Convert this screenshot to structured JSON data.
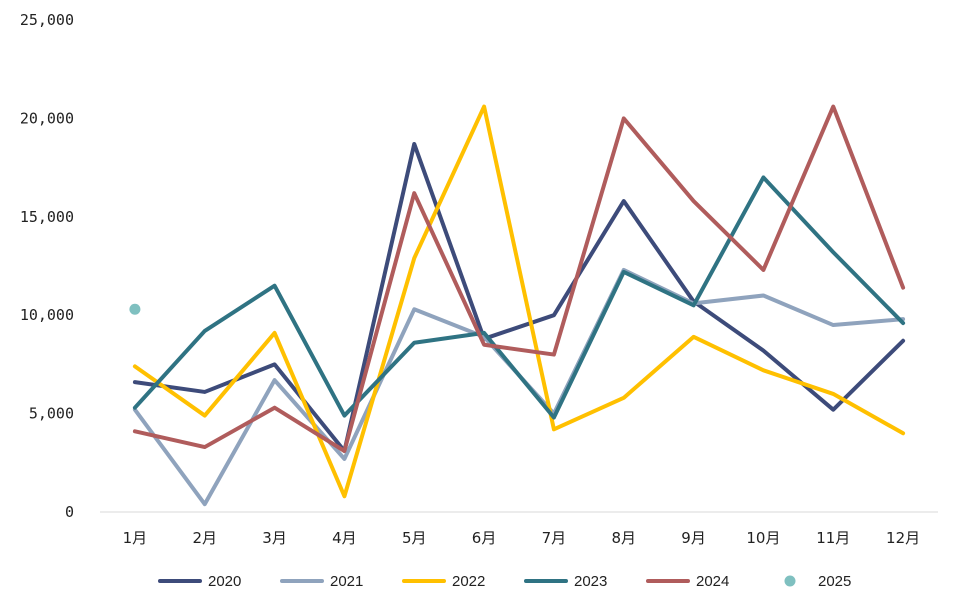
{
  "chart_data": {
    "type": "line",
    "categories": [
      "1月",
      "2月",
      "3月",
      "4月",
      "5月",
      "6月",
      "7月",
      "8月",
      "9月",
      "10月",
      "11月",
      "12月"
    ],
    "ylim": [
      0,
      25000
    ],
    "yticks": [
      0,
      5000,
      10000,
      15000,
      20000,
      25000
    ],
    "ytick_labels": [
      "0",
      "5,000",
      "10,000",
      "15,000",
      "20,000",
      "25,000"
    ],
    "legend_position": "bottom",
    "grid": false,
    "series": [
      {
        "name": "2020",
        "color": "#3d4b7a",
        "style": "line",
        "values": [
          6600,
          6100,
          7500,
          3100,
          18700,
          8800,
          10000,
          15800,
          10700,
          8200,
          5200,
          8700
        ]
      },
      {
        "name": "2021",
        "color": "#8fa3bd",
        "style": "line",
        "values": [
          5200,
          400,
          6700,
          2700,
          10300,
          8900,
          5000,
          12300,
          10600,
          11000,
          9500,
          9800
        ]
      },
      {
        "name": "2022",
        "color": "#ffc000",
        "style": "line",
        "values": [
          7400,
          4900,
          9100,
          800,
          12900,
          20600,
          4200,
          5800,
          8900,
          7200,
          6000,
          4000
        ]
      },
      {
        "name": "2023",
        "color": "#2f7383",
        "style": "line",
        "values": [
          5300,
          9200,
          11500,
          4900,
          8600,
          9100,
          4800,
          12200,
          10500,
          17000,
          13200,
          9600
        ]
      },
      {
        "name": "2024",
        "color": "#b05c5c",
        "style": "line",
        "values": [
          4100,
          3300,
          5300,
          3100,
          16200,
          8500,
          8000,
          20000,
          15800,
          12300,
          20600,
          11400
        ]
      },
      {
        "name": "2025",
        "color": "#7fc0c0",
        "style": "point",
        "values": [
          10300,
          null,
          null,
          null,
          null,
          null,
          null,
          null,
          null,
          null,
          null,
          null
        ]
      }
    ]
  }
}
